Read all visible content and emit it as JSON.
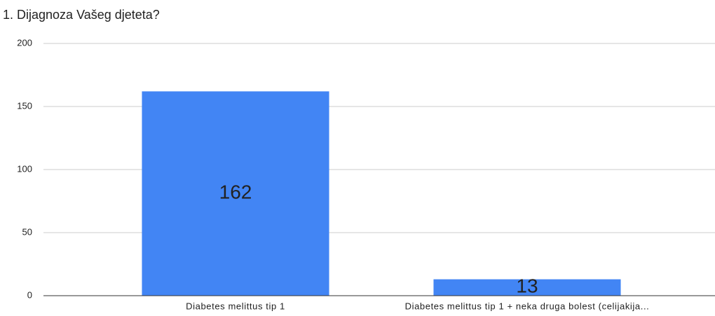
{
  "chart_data": {
    "type": "bar",
    "title": "1. Dijagnoza Vašeg djeteta?",
    "categories": [
      "Diabetes melittus tip 1",
      "Diabetes melittus tip 1 + neka druga bolest (celijakija..."
    ],
    "values": [
      162,
      13
    ],
    "color": "#4285f4",
    "ylim": [
      0,
      200
    ],
    "yticks": [
      0,
      50,
      100,
      150,
      200
    ],
    "grid": true
  }
}
